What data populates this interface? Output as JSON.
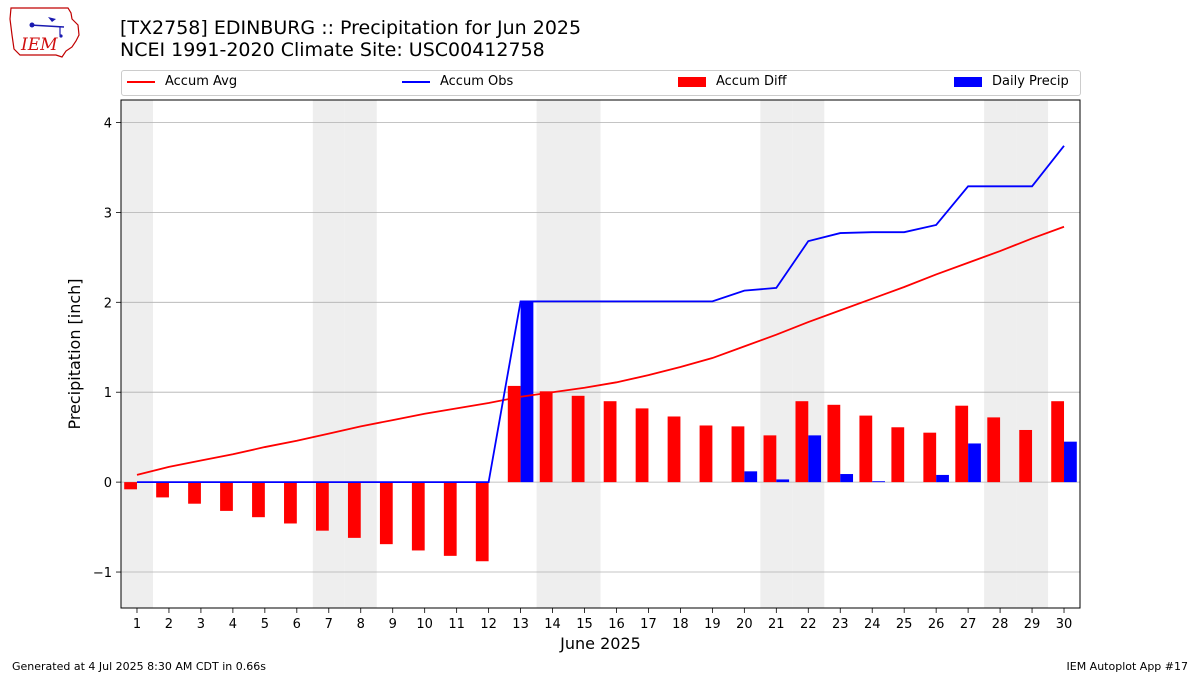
{
  "header": {
    "title": "[TX2758] EDINBURG :: Precipitation for Jun 2025",
    "subtitle": "NCEI 1991-2020 Climate Site: USC00412758"
  },
  "logo": {
    "text": "IEM"
  },
  "footer": {
    "left": "Generated at 4 Jul 2025 8:30 AM CDT in 0.66s",
    "right": "IEM Autoplot App #17"
  },
  "colors": {
    "accum_avg": "#ff0000",
    "accum_obs": "#0000ff",
    "accum_diff": "#ff0000",
    "daily_precip": "#0000ff",
    "weekend_shade": "#eeeeee",
    "grid": "#b0b0b0"
  },
  "chart_data": {
    "type": "bar",
    "xlabel": "June 2025",
    "ylabel": "Precipitation [inch]",
    "ylim": [
      -1.4,
      4.25
    ],
    "yticks": [
      -1,
      0,
      1,
      2,
      3,
      4
    ],
    "ytick_labels": [
      "−1",
      "0",
      "1",
      "2",
      "3",
      "4"
    ],
    "grid": "horizontal",
    "legend_position": "top",
    "x": [
      1,
      2,
      3,
      4,
      5,
      6,
      7,
      8,
      9,
      10,
      11,
      12,
      13,
      14,
      15,
      16,
      17,
      18,
      19,
      20,
      21,
      22,
      23,
      24,
      25,
      26,
      27,
      28,
      29,
      30
    ],
    "x_labels": [
      "1",
      "2",
      "3",
      "4",
      "5",
      "6",
      "7",
      "8",
      "9",
      "10",
      "11",
      "12",
      "13",
      "14",
      "15",
      "16",
      "17",
      "18",
      "19",
      "20",
      "21",
      "22",
      "23",
      "24",
      "25",
      "26",
      "27",
      "28",
      "29",
      "30"
    ],
    "weekend_days": [
      1,
      7,
      8,
      14,
      15,
      21,
      22,
      28,
      29
    ],
    "series": [
      {
        "name": "Accum Avg",
        "kind": "line",
        "values": [
          0.08,
          0.17,
          0.24,
          0.31,
          0.39,
          0.46,
          0.54,
          0.62,
          0.69,
          0.76,
          0.82,
          0.88,
          0.95,
          1.0,
          1.05,
          1.11,
          1.19,
          1.28,
          1.38,
          1.51,
          1.64,
          1.78,
          1.91,
          2.04,
          2.17,
          2.31,
          2.44,
          2.57,
          2.71,
          2.84
        ]
      },
      {
        "name": "Accum Obs",
        "kind": "line",
        "values": [
          0,
          0,
          0,
          0,
          0,
          0,
          0,
          0,
          0,
          0,
          0,
          0,
          2.01,
          2.01,
          2.01,
          2.01,
          2.01,
          2.01,
          2.01,
          2.13,
          2.16,
          2.68,
          2.77,
          2.78,
          2.78,
          2.86,
          3.29,
          3.29,
          3.29,
          3.74
        ]
      },
      {
        "name": "Accum Diff",
        "kind": "bar",
        "values": [
          -0.08,
          -0.17,
          -0.24,
          -0.32,
          -0.39,
          -0.46,
          -0.54,
          -0.62,
          -0.69,
          -0.76,
          -0.82,
          -0.88,
          1.07,
          1.01,
          0.96,
          0.9,
          0.82,
          0.73,
          0.63,
          0.62,
          0.52,
          0.9,
          0.86,
          0.74,
          0.61,
          0.55,
          0.85,
          0.72,
          0.58,
          0.9
        ]
      },
      {
        "name": "Daily Precip",
        "kind": "bar",
        "values": [
          0,
          0,
          0,
          0,
          0,
          0,
          0,
          0,
          0,
          0,
          0,
          0,
          2.01,
          0,
          0,
          0,
          0,
          0,
          0,
          0.12,
          0.03,
          0.52,
          0.09,
          0.01,
          0,
          0.08,
          0.43,
          0,
          0,
          0.45
        ]
      }
    ]
  }
}
